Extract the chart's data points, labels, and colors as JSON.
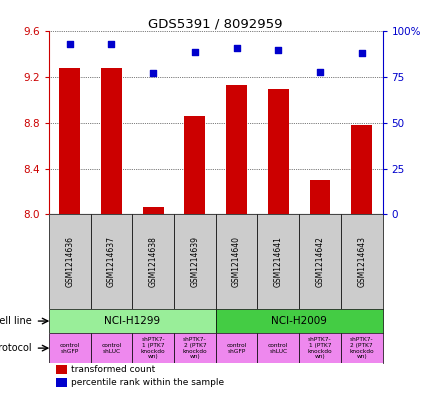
{
  "title": "GDS5391 / 8092959",
  "samples": [
    "GSM1214636",
    "GSM1214637",
    "GSM1214638",
    "GSM1214639",
    "GSM1214640",
    "GSM1214641",
    "GSM1214642",
    "GSM1214643"
  ],
  "transformed_counts": [
    9.28,
    9.28,
    8.06,
    8.86,
    9.13,
    9.1,
    8.3,
    8.78
  ],
  "percentile_ranks": [
    93,
    93,
    77,
    89,
    91,
    90,
    78,
    88
  ],
  "ylim_left": [
    8.0,
    9.6
  ],
  "ylim_right": [
    0,
    100
  ],
  "yticks_left": [
    8.0,
    8.4,
    8.8,
    9.2,
    9.6
  ],
  "yticks_right": [
    0,
    25,
    50,
    75,
    100
  ],
  "ytick_labels_right": [
    "0",
    "25",
    "50",
    "75",
    "100%"
  ],
  "bar_color": "#cc0000",
  "dot_color": "#0000cc",
  "cell_line_groups": [
    {
      "label": "NCI-H1299",
      "start": 0,
      "end": 3,
      "color": "#99ee99"
    },
    {
      "label": "NCI-H2009",
      "start": 4,
      "end": 7,
      "color": "#44cc44"
    }
  ],
  "protocol_labels": [
    "control\nshGFP",
    "control\nshLUC",
    "shPTK7-\n1 (PTK7\nknockdo\nwn)",
    "shPTK7-\n2 (PTK7\nknockdo\nwn)",
    "control\nshGFP",
    "control\nshLUC",
    "shPTK7-\n1 (PTK7\nknockdo\nwn)",
    "shPTK7-\n2 (PTK7\nknockdo\nwn)"
  ],
  "protocol_color": "#ee88ee",
  "sample_box_color": "#cccccc",
  "cell_line_label": "cell line",
  "protocol_label": "protocol",
  "legend_bar_label": "transformed count",
  "legend_dot_label": "percentile rank within the sample",
  "background_color": "#ffffff",
  "base_value": 8.0
}
